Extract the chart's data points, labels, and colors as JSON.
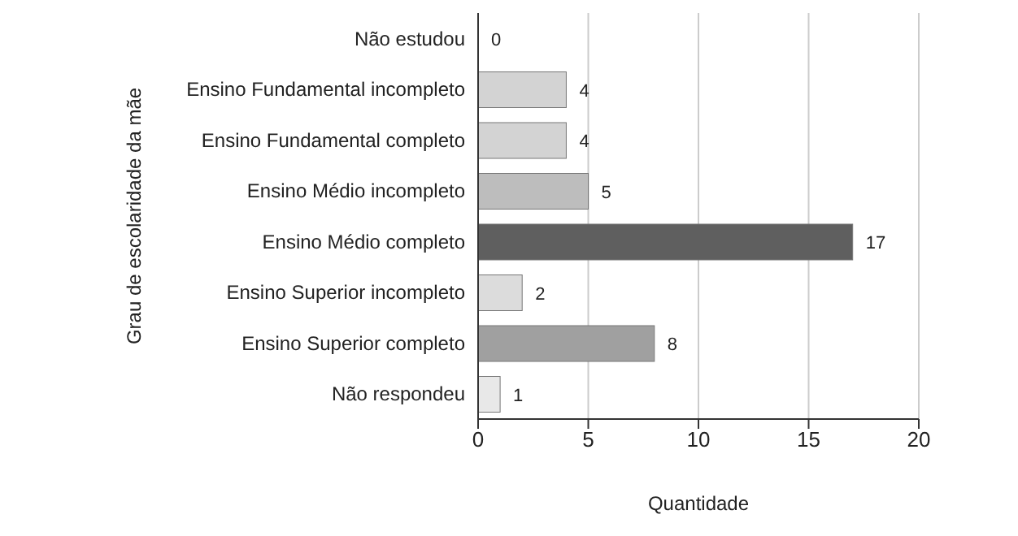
{
  "chart_data": {
    "type": "bar",
    "orientation": "horizontal",
    "xlabel": "Quantidade",
    "ylabel": "Grau de escolaridade da mãe",
    "categories": [
      "Não estudou",
      "Ensino Fundamental incompleto",
      "Ensino Fundamental completo",
      "Ensino Médio incompleto",
      "Ensino Médio completo",
      "Ensino Superior incompleto",
      "Ensino Superior completo",
      "Não respondeu"
    ],
    "values": [
      0,
      4,
      4,
      5,
      17,
      2,
      8,
      1
    ],
    "colors": [
      "#c8c8c8",
      "#d3d3d3",
      "#d3d3d3",
      "#bdbdbd",
      "#5f5f5f",
      "#dcdcdc",
      "#a0a0a0",
      "#e8e8e8"
    ],
    "xlim": [
      0,
      20
    ],
    "xticks": [
      0,
      5,
      10,
      15,
      20
    ],
    "grid": "x",
    "data_labels": true,
    "legend": false
  }
}
